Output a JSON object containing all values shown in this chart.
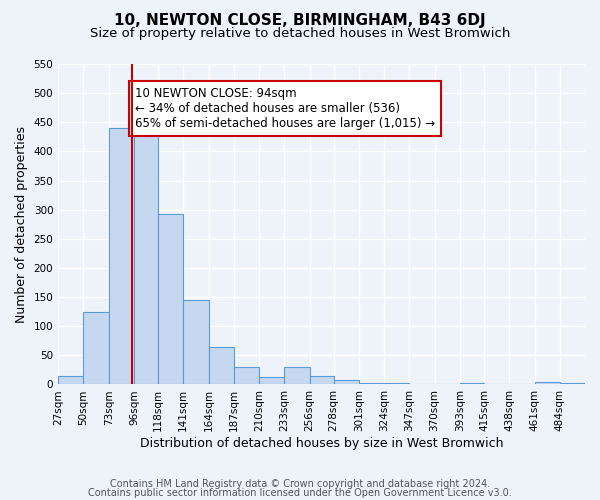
{
  "title": "10, NEWTON CLOSE, BIRMINGHAM, B43 6DJ",
  "subtitle": "Size of property relative to detached houses in West Bromwich",
  "xlabel": "Distribution of detached houses by size in West Bromwich",
  "ylabel": "Number of detached properties",
  "bin_labels": [
    "27sqm",
    "50sqm",
    "73sqm",
    "96sqm",
    "118sqm",
    "141sqm",
    "164sqm",
    "187sqm",
    "210sqm",
    "233sqm",
    "256sqm",
    "278sqm",
    "301sqm",
    "324sqm",
    "347sqm",
    "370sqm",
    "393sqm",
    "415sqm",
    "438sqm",
    "461sqm",
    "484sqm"
  ],
  "bar_values": [
    15,
    125,
    440,
    430,
    293,
    145,
    65,
    30,
    13,
    30,
    15,
    8,
    3,
    3,
    0,
    0,
    3,
    0,
    0,
    5,
    3
  ],
  "bin_edges": [
    27,
    50,
    73,
    96,
    118,
    141,
    164,
    187,
    210,
    233,
    256,
    278,
    301,
    324,
    347,
    370,
    393,
    415,
    438,
    461,
    484,
    507
  ],
  "bar_color": "#c5d8f0",
  "bar_edge_color": "#5b9bd5",
  "vline_x": 94,
  "vline_color": "#cc0000",
  "ylim": [
    0,
    550
  ],
  "yticks": [
    0,
    50,
    100,
    150,
    200,
    250,
    300,
    350,
    400,
    450,
    500,
    550
  ],
  "annotation_text": "10 NEWTON CLOSE: 94sqm\n← 34% of detached houses are smaller (536)\n65% of semi-detached houses are larger (1,015) →",
  "annotation_bbox_color": "white",
  "annotation_bbox_edge": "#cc0000",
  "footer1": "Contains HM Land Registry data © Crown copyright and database right 2024.",
  "footer2": "Contains public sector information licensed under the Open Government Licence v3.0.",
  "background_color": "#eef3fa",
  "plot_background": "#eef3fa",
  "grid_color": "white",
  "title_fontsize": 11,
  "subtitle_fontsize": 9.5,
  "xlabel_fontsize": 9,
  "ylabel_fontsize": 9,
  "tick_fontsize": 7.5,
  "annot_fontsize": 8.5,
  "footer_fontsize": 7
}
